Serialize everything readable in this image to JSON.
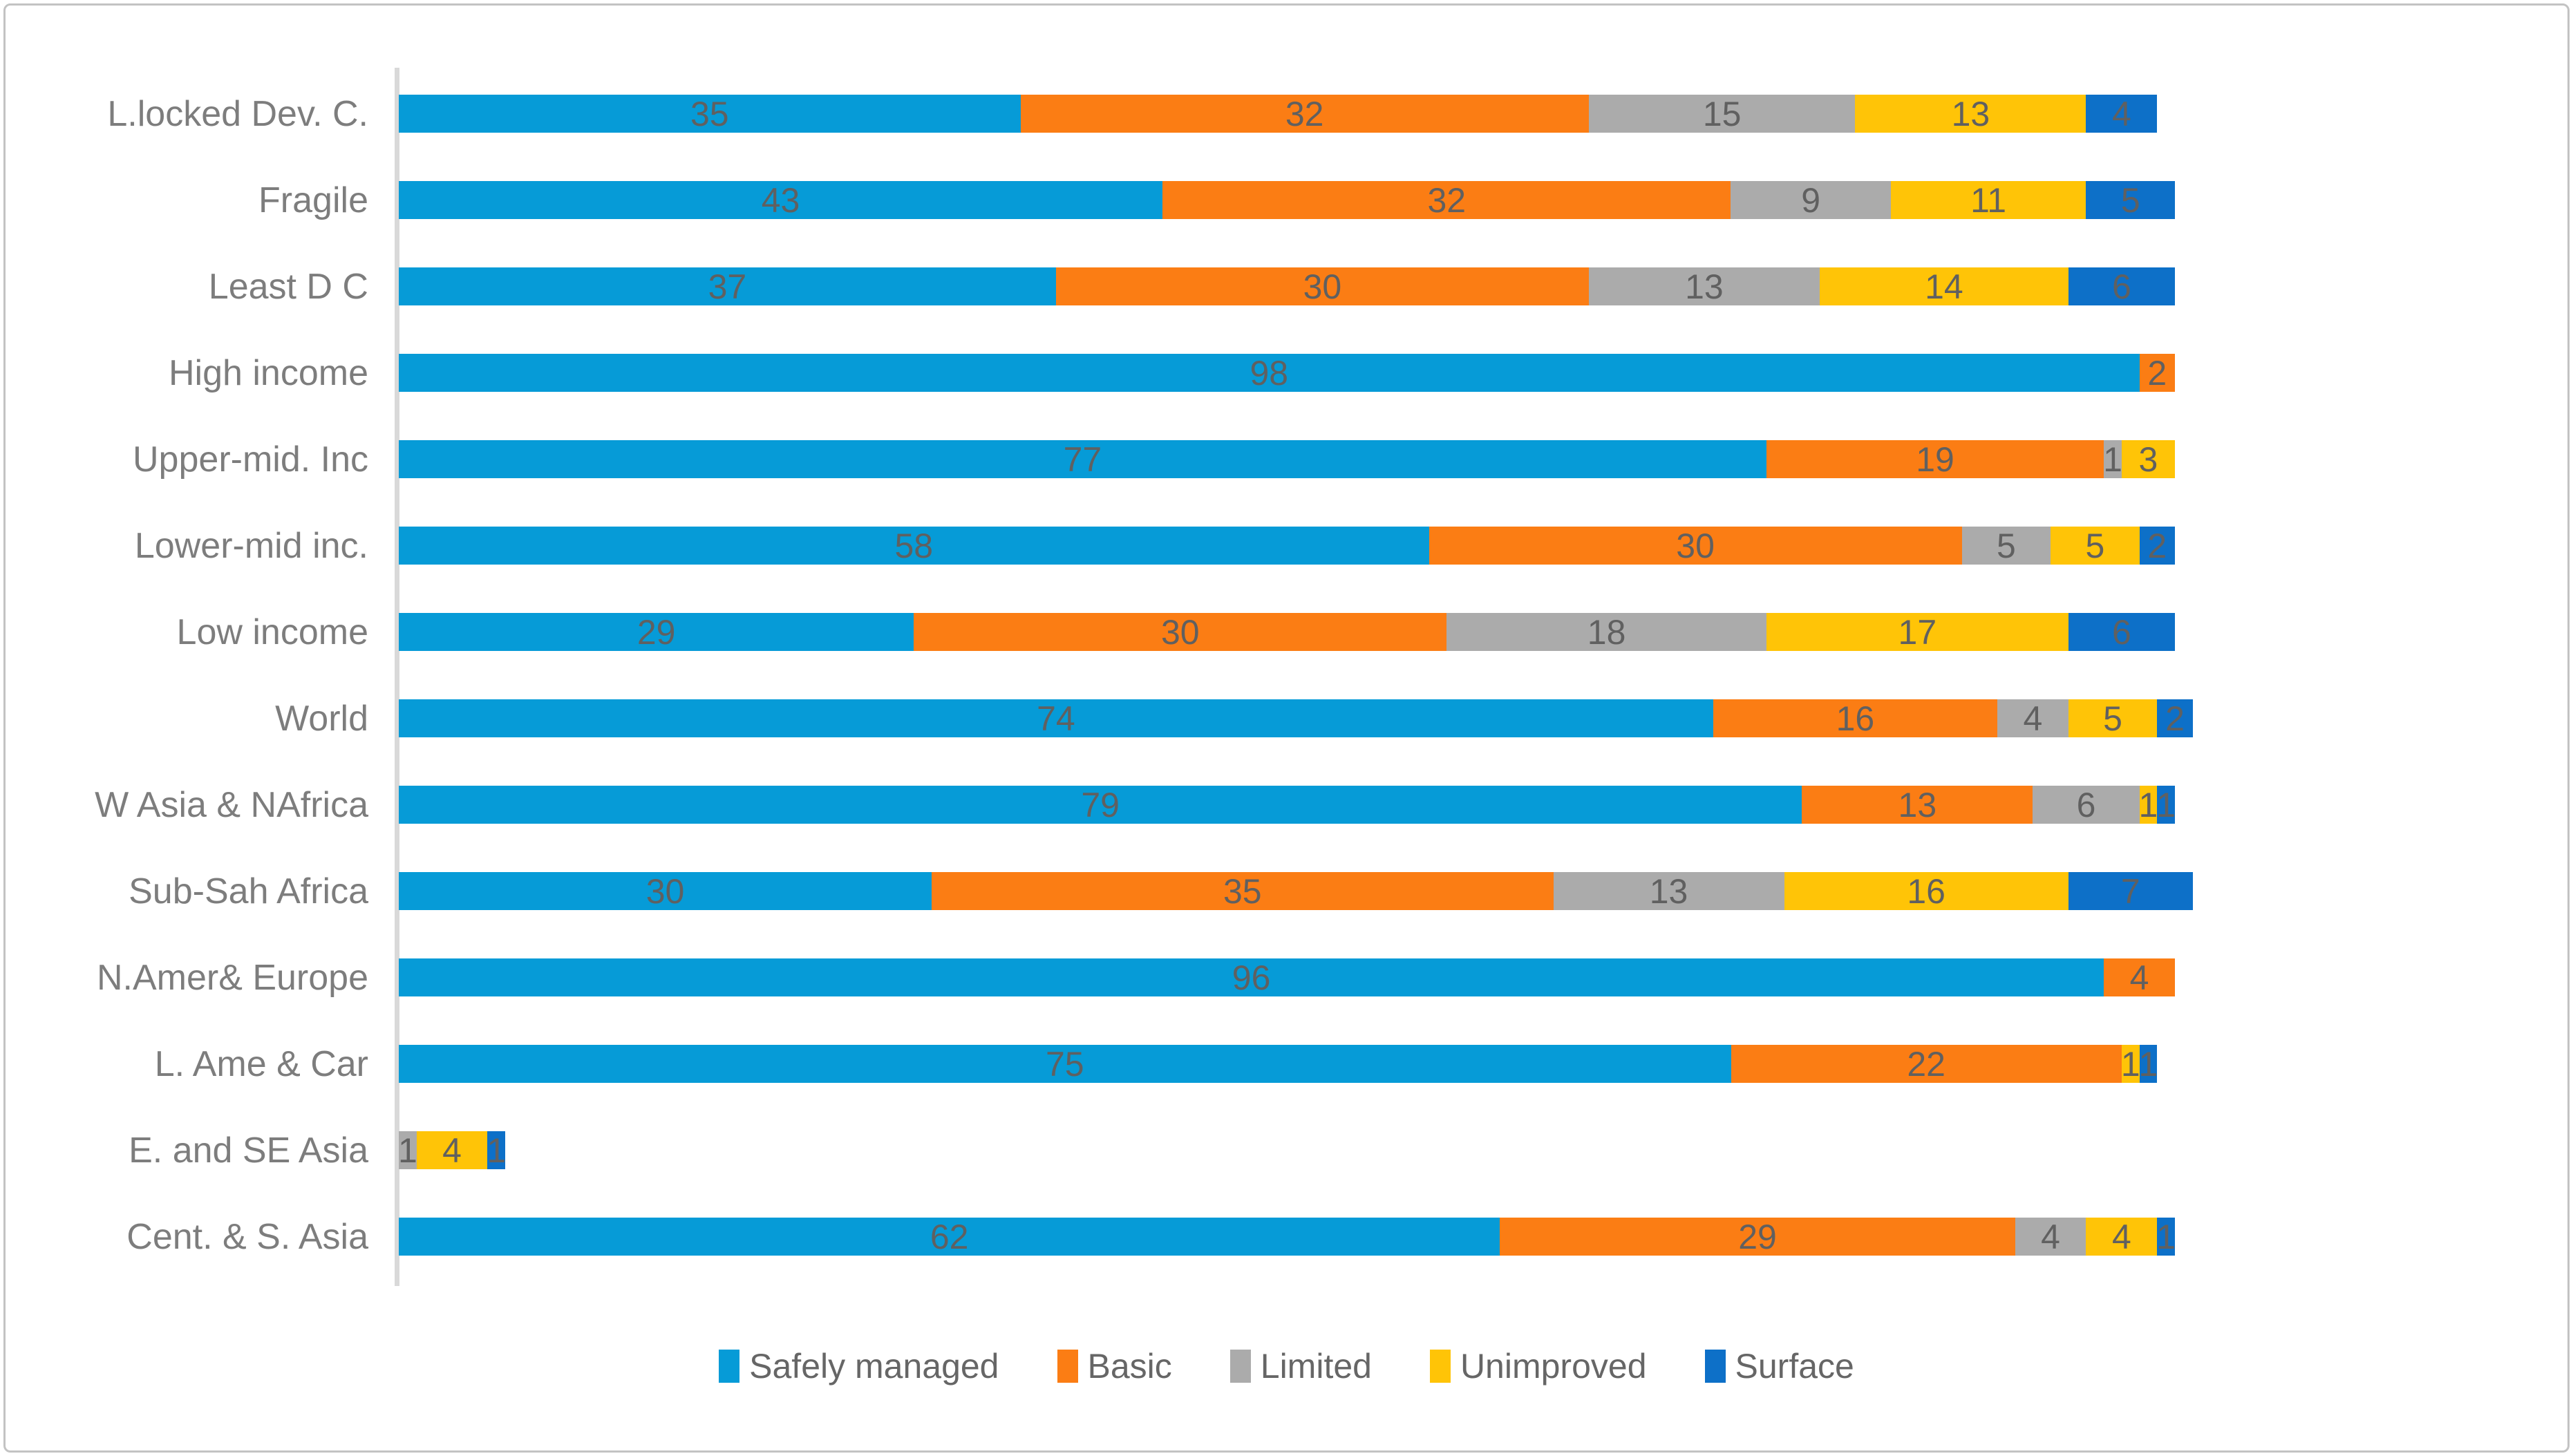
{
  "chart_data": {
    "type": "bar",
    "orientation": "horizontal-stacked",
    "title": "",
    "xlabel": "",
    "ylabel": "",
    "value_axis": {
      "min": 0,
      "max": 100,
      "units": "percent",
      "gridlines": false
    },
    "legend_position": "bottom",
    "data_labels": "inside-center, zero values hidden",
    "categories": [
      "L.locked Dev. C.",
      "Fragile",
      "Least D C",
      "High income",
      "Upper-mid. Inc",
      "Lower-mid inc.",
      "Low income",
      "World",
      "W Asia & NAfrica",
      "Sub-Sah Africa",
      "N.Amer& Europe",
      "L. Ame & Car",
      "E. and SE Asia",
      "Cent. & S. Asia"
    ],
    "series": [
      {
        "name": "Safely managed",
        "color": "#069bd7",
        "values": [
          35,
          43,
          37,
          98,
          77,
          58,
          29,
          74,
          79,
          30,
          96,
          75,
          0,
          62
        ]
      },
      {
        "name": "Basic",
        "color": "#fb7d14",
        "values": [
          32,
          32,
          30,
          2,
          19,
          30,
          30,
          16,
          13,
          35,
          4,
          22,
          0,
          29
        ]
      },
      {
        "name": "Limited",
        "color": "#ababab",
        "values": [
          15,
          9,
          13,
          0,
          1,
          5,
          18,
          4,
          6,
          13,
          0,
          0,
          1,
          4
        ]
      },
      {
        "name": "Unimproved",
        "color": "#ffc407",
        "values": [
          13,
          11,
          14,
          0,
          3,
          5,
          17,
          5,
          1,
          16,
          0,
          1,
          4,
          4
        ]
      },
      {
        "name": "Surface",
        "color": "#0d70c8",
        "values": [
          4,
          5,
          6,
          0,
          0,
          2,
          6,
          2,
          1,
          7,
          0,
          1,
          1,
          1
        ]
      }
    ]
  },
  "styles": {
    "frame_border_color": "#c3c3c3",
    "axis_line_color": "#d9d9d9",
    "category_label_color": "#7d7d7d",
    "value_label_color": "#606060",
    "legend_text_color": "#666666",
    "background": "#ffffff"
  }
}
